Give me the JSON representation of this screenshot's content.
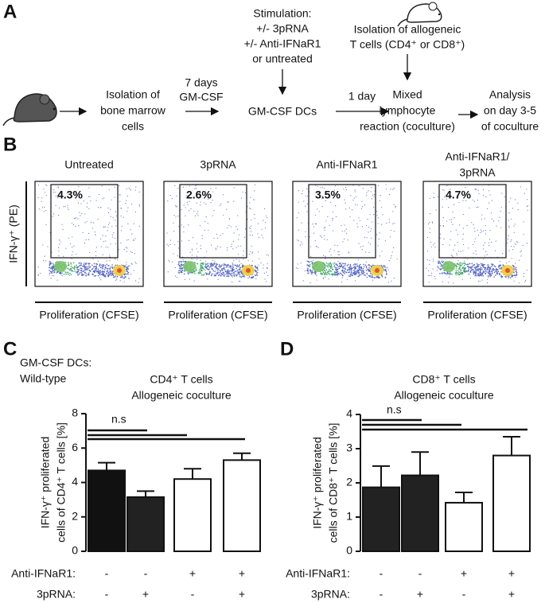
{
  "panel_a": {
    "label": "A",
    "steps": {
      "isolation_bm": [
        "Isolation of",
        "bone marrow",
        "cells"
      ],
      "culture": [
        "7 days",
        "GM-CSF"
      ],
      "stimulation": [
        "Stimulation:",
        "+/- 3pRNA",
        "+/- Anti-IFNaR1",
        "or untreated"
      ],
      "dcs": "GM-CSF DCs",
      "coculture_time": "1 day",
      "isolation_t": [
        "Isolation of allogeneic",
        "T cells (CD4⁺ or CD8⁺)"
      ],
      "mlr": [
        "Mixed",
        "lymphocyte",
        "reaction (coculture)"
      ],
      "analysis": [
        "Analysis",
        "on day 3-5",
        "of coculture"
      ]
    }
  },
  "panel_b": {
    "label": "B",
    "y_label": "IFN-γ⁺ (PE)",
    "plots": [
      {
        "title": [
          "Untreated"
        ],
        "gate": "4.3%",
        "x_label": "Proliferation (CFSE)"
      },
      {
        "title": [
          "3pRNA"
        ],
        "gate": "2.6%",
        "x_label": "Proliferation (CFSE)"
      },
      {
        "title": [
          "Anti-IFNaR1"
        ],
        "gate": "3.5%",
        "x_label": "Proliferation (CFSE)"
      },
      {
        "title": [
          "Anti-IFNaR1/",
          "3pRNA"
        ],
        "gate": "4.7%",
        "x_label": "Proliferation (CFSE)"
      }
    ]
  },
  "panel_c_header": [
    "GM-CSF DCs:",
    "Wild-type"
  ],
  "chart_data": [
    {
      "type": "bar",
      "label": "C",
      "title": [
        "CD4⁺ T cells",
        "Allogeneic coculture"
      ],
      "y_label": [
        "IFN-γ⁺ proliferated",
        "cells of CD4⁺ T cells [%]"
      ],
      "values": [
        4.7,
        3.15,
        4.2,
        5.3
      ],
      "errors": [
        0.45,
        0.35,
        0.6,
        0.4
      ],
      "colors": [
        "#111111",
        "#222222",
        "#ffffff",
        "#ffffff"
      ],
      "ylim": [
        0,
        8
      ],
      "yticks": [
        0,
        2,
        4,
        6,
        8
      ],
      "annotation": "n.s",
      "conditions": [
        {
          "name": "Anti-IFNaR1:",
          "levels": [
            "-",
            "-",
            "+",
            "+"
          ]
        },
        {
          "name": "3pRNA:",
          "levels": [
            "-",
            "+",
            "-",
            "+"
          ]
        }
      ]
    },
    {
      "type": "bar",
      "label": "D",
      "title": [
        "CD8⁺ T cells",
        "Allogeneic coculture"
      ],
      "y_label": [
        "IFN-γ⁺ proliferated",
        "cells of CD8⁺ T cells [%]"
      ],
      "values": [
        1.87,
        2.22,
        1.42,
        2.8
      ],
      "errors": [
        0.62,
        0.68,
        0.3,
        0.55
      ],
      "colors": [
        "#222222",
        "#222222",
        "#ffffff",
        "#ffffff"
      ],
      "ylim": [
        0,
        4
      ],
      "yticks": [
        0,
        1,
        2,
        3,
        4
      ],
      "annotation": "n.s",
      "conditions": [
        {
          "name": "Anti-IFNaR1:",
          "levels": [
            "-",
            "-",
            "+",
            "+"
          ]
        },
        {
          "name": "3pRNA:",
          "levels": [
            "-",
            "+",
            "-",
            "+"
          ]
        }
      ]
    }
  ]
}
